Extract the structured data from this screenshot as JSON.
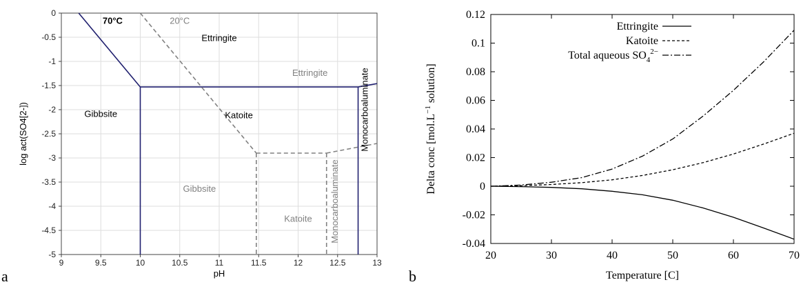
{
  "panel_labels": {
    "a": "a",
    "b": "b"
  },
  "chart_data": [
    {
      "type": "line",
      "title": "",
      "xlabel": "pH",
      "ylabel": "log act(SO4[2-])",
      "xlim": [
        9,
        13
      ],
      "ylim": [
        -5,
        0
      ],
      "xticks": [
        9,
        9.5,
        10,
        10.5,
        11,
        11.5,
        12,
        12.5,
        13
      ],
      "xtick_labels": [
        "9",
        "9.5",
        "10",
        "10.5",
        "11",
        "11.5",
        "12",
        "12.5",
        "13"
      ],
      "yticks": [
        0,
        -0.5,
        -1,
        -1.5,
        -2,
        -2.5,
        -3,
        -3.5,
        -4,
        -4.5,
        -5
      ],
      "ytick_labels": [
        "0",
        "-0.5",
        "-1",
        "-1.5",
        "-2",
        "-2.5",
        "-3",
        "-3.5",
        "-4",
        "-4.5",
        "-5"
      ],
      "grid": true,
      "colors": {
        "t70": "#1f1f6e",
        "t20": "#808080"
      },
      "series": [
        {
          "name": "70°C",
          "color": "#1f1f6e",
          "style": "solid",
          "segments": [
            [
              [
                9.22,
                0
              ],
              [
                10,
                -1.53
              ]
            ],
            [
              [
                10,
                -1.53
              ],
              [
                10,
                -5
              ]
            ],
            [
              [
                10,
                -1.53
              ],
              [
                12.76,
                -1.53
              ]
            ],
            [
              [
                12.76,
                -1.53
              ],
              [
                12.76,
                -5
              ]
            ],
            [
              [
                12.76,
                -1.53
              ],
              [
                13,
                -1.46
              ]
            ]
          ]
        },
        {
          "name": "20°C",
          "color": "#808080",
          "style": "dashed",
          "segments": [
            [
              [
                10,
                0
              ],
              [
                11.47,
                -2.9
              ]
            ],
            [
              [
                11.47,
                -2.9
              ],
              [
                12.36,
                -2.9
              ]
            ],
            [
              [
                11.47,
                -2.9
              ],
              [
                11.47,
                -5
              ]
            ],
            [
              [
                12.36,
                -2.9
              ],
              [
                12.36,
                -5
              ]
            ],
            [
              [
                12.36,
                -2.9
              ],
              [
                13,
                -2.7
              ]
            ]
          ]
        }
      ],
      "region_labels": [
        {
          "text": "70°C",
          "x": 9.65,
          "y": -0.22,
          "color": "#000000",
          "bold": true,
          "rotate": 0
        },
        {
          "text": "20°C",
          "x": 10.5,
          "y": -0.22,
          "color": "#808080",
          "bold": false,
          "rotate": 0
        },
        {
          "text": "Ettringite",
          "x": 11.0,
          "y": -0.58,
          "color": "#000000",
          "bold": false,
          "rotate": 0
        },
        {
          "text": "Ettringite",
          "x": 12.15,
          "y": -1.3,
          "color": "#808080",
          "bold": false,
          "rotate": 0
        },
        {
          "text": "Gibbsite",
          "x": 9.5,
          "y": -2.15,
          "color": "#000000",
          "bold": false,
          "rotate": 0
        },
        {
          "text": "Katoite",
          "x": 11.25,
          "y": -2.18,
          "color": "#000000",
          "bold": false,
          "rotate": 0
        },
        {
          "text": "Gibbsite",
          "x": 10.75,
          "y": -3.7,
          "color": "#808080",
          "bold": false,
          "rotate": 0
        },
        {
          "text": "Katoite",
          "x": 12.0,
          "y": -4.32,
          "color": "#808080",
          "bold": false,
          "rotate": 0
        },
        {
          "text": "Monocarboaluminate",
          "x": 12.5,
          "y": -3.9,
          "color": "#808080",
          "bold": false,
          "rotate": -90
        },
        {
          "text": "Monocarboaluminate",
          "x": 12.88,
          "y": -2.0,
          "color": "#000000",
          "bold": false,
          "rotate": -90
        }
      ]
    },
    {
      "type": "line",
      "title": "",
      "xlabel": "Temperature [C]",
      "ylabel_main": "Delta conc [mol.L",
      "ylabel_sup": "−1",
      "ylabel_tail": " solution]",
      "xlim": [
        20,
        70
      ],
      "ylim": [
        -0.04,
        0.12
      ],
      "xticks": [
        20,
        30,
        40,
        50,
        60,
        70
      ],
      "xtick_labels": [
        "20",
        "30",
        "40",
        "50",
        "60",
        "70"
      ],
      "yticks": [
        -0.04,
        -0.02,
        0,
        0.02,
        0.04,
        0.06,
        0.08,
        0.1,
        0.12
      ],
      "ytick_labels": [
        "-0.04",
        "-0.02",
        "0",
        "0.02",
        "0.04",
        "0.06",
        "0.08",
        "0.1",
        "0.12"
      ],
      "grid": false,
      "legend_position": "top-right",
      "x": [
        20,
        25,
        30,
        35,
        40,
        45,
        50,
        55,
        60,
        65,
        70
      ],
      "series": [
        {
          "name": "Ettringite",
          "style": "solid",
          "values": [
            0,
            -0.0003,
            -0.0008,
            -0.0018,
            -0.0035,
            -0.006,
            -0.0098,
            -0.0152,
            -0.0217,
            -0.0292,
            -0.037
          ]
        },
        {
          "name": "Katoite",
          "style": "dashed",
          "values": [
            0,
            0.0004,
            0.0012,
            0.0025,
            0.0045,
            0.0075,
            0.0115,
            0.0165,
            0.0225,
            0.0295,
            0.037
          ]
        },
        {
          "name_main": "Total aqueous SO",
          "name_sub": "4",
          "name_sup": "2−",
          "style": "dashdot",
          "values": [
            0,
            0.0008,
            0.0028,
            0.006,
            0.012,
            0.021,
            0.033,
            0.049,
            0.067,
            0.087,
            0.109
          ]
        }
      ]
    }
  ]
}
